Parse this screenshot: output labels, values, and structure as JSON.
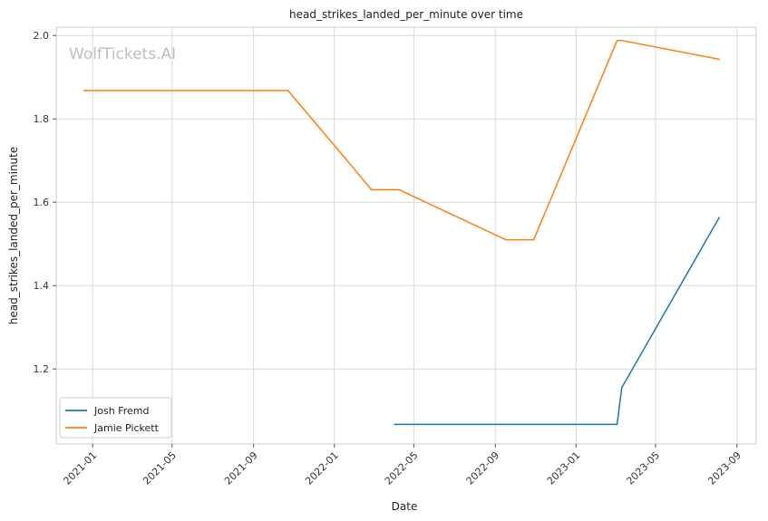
{
  "chart_data": {
    "type": "line",
    "title": "head_strikes_landed_per_minute over time",
    "xlabel": "Date",
    "ylabel": "head_strikes_landed_per_minute",
    "watermark": "WolfTickets.AI",
    "xlim": [
      "2020-11-07",
      "2023-09-30"
    ],
    "ylim": [
      1.02,
      2.02
    ],
    "x_ticks": [
      "2021-01",
      "2021-05",
      "2021-09",
      "2022-01",
      "2022-05",
      "2022-09",
      "2023-01",
      "2023-05",
      "2023-09"
    ],
    "y_ticks": [
      "1.2",
      "1.4",
      "1.6",
      "1.8",
      "2.0"
    ],
    "grid": true,
    "legend_position": "lower-left",
    "series": [
      {
        "name": "Josh Fremd",
        "color": "#1f77b4",
        "x": [
          "2022-04-02",
          "2023-03-04",
          "2023-03-11",
          "2023-08-05"
        ],
        "y": [
          1.067,
          1.067,
          1.155,
          1.563
        ]
      },
      {
        "name": "Jamie Pickett",
        "color": "#ff7f0e",
        "x": [
          "2020-12-19",
          "2021-10-23",
          "2022-01-15",
          "2022-02-26",
          "2022-04-09",
          "2022-09-17",
          "2022-10-29",
          "2023-03-04",
          "2023-03-11",
          "2023-08-05"
        ],
        "y": [
          1.868,
          1.868,
          1.71,
          1.63,
          1.63,
          1.51,
          1.51,
          1.988,
          1.988,
          1.943
        ]
      }
    ]
  }
}
